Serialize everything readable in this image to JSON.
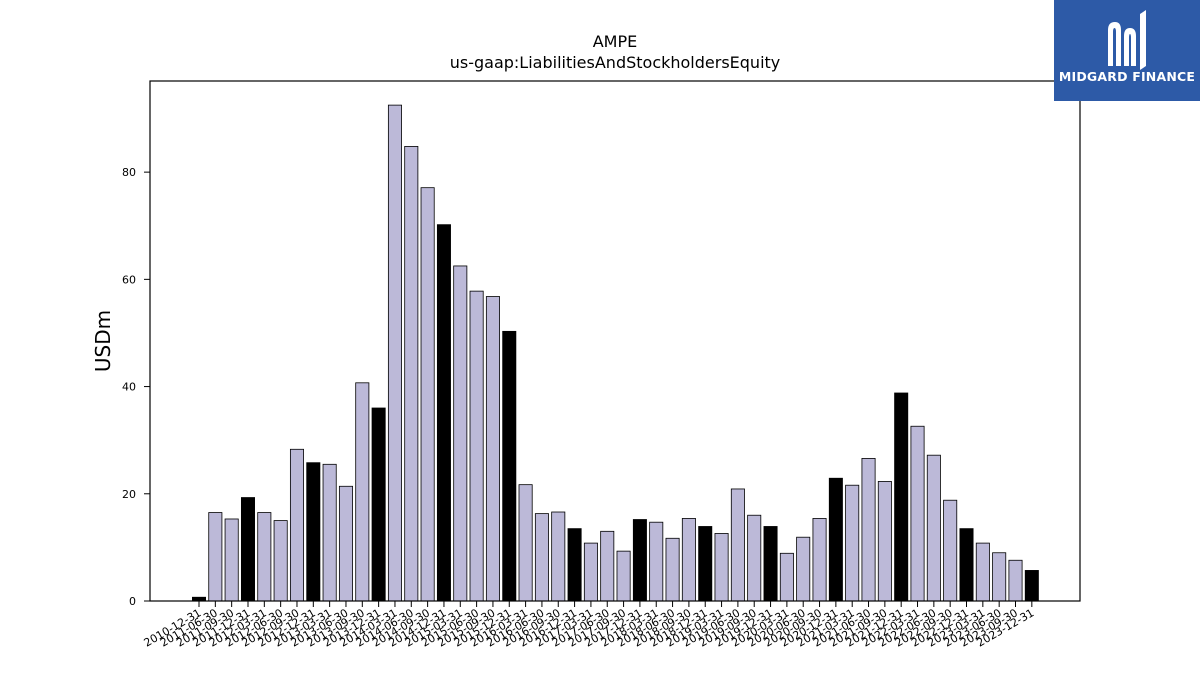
{
  "title_line1": "AMPE",
  "title_line2": "us-gaap:LiabilitiesAndStockholdersEquity",
  "logo": {
    "text": "MIDGARD FINANCE",
    "background": "#2d5aa7",
    "icon": "midgard-m-logo-icon"
  },
  "colors": {
    "bar_default": "#bcb9d8",
    "bar_year_end": "#000000",
    "bar_edge": "#000000"
  },
  "chart_data": {
    "type": "bar",
    "title": "AMPE\nus-gaap:LiabilitiesAndStockholdersEquity",
    "xlabel": "",
    "ylabel": "USDm",
    "ylim": [
      0,
      97
    ],
    "yticks": [
      0,
      20,
      40,
      60,
      80
    ],
    "grid": false,
    "legend": "none",
    "note": "",
    "categories": [
      "2010-12-31",
      "2011-06-30",
      "2011-09-30",
      "2011-12-31",
      "2012-03-31",
      "2012-06-30",
      "2012-09-30",
      "2012-12-31",
      "2013-03-31",
      "2013-06-30",
      "2013-09-30",
      "2013-12-31",
      "2014-03-31",
      "2014-06-30",
      "2014-09-30",
      "2014-12-31",
      "2015-03-31",
      "2015-06-30",
      "2015-09-30",
      "2015-12-31",
      "2016-03-31",
      "2016-06-30",
      "2016-09-30",
      "2016-12-31",
      "2017-03-31",
      "2017-06-30",
      "2017-09-30",
      "2017-12-31",
      "2018-03-31",
      "2018-06-30",
      "2018-09-30",
      "2018-12-31",
      "2019-03-31",
      "2019-06-30",
      "2019-09-30",
      "2019-12-31",
      "2020-03-31",
      "2020-06-30",
      "2020-09-30",
      "2020-12-31",
      "2021-03-31",
      "2021-06-30",
      "2021-09-30",
      "2021-12-31",
      "2022-03-31",
      "2022-06-30",
      "2022-09-30",
      "2022-12-31",
      "2023-03-31",
      "2023-06-30",
      "2023-09-30",
      "2023-12-31"
    ],
    "values": [
      0.7,
      16.5,
      15.3,
      19.3,
      16.5,
      15.0,
      28.3,
      25.8,
      25.5,
      21.4,
      40.7,
      36.0,
      92.5,
      84.8,
      77.1,
      70.2,
      62.5,
      57.8,
      56.8,
      50.3,
      21.7,
      16.3,
      16.6,
      13.5,
      10.8,
      13.0,
      9.3,
      15.2,
      14.7,
      11.7,
      15.4,
      13.9,
      12.6,
      20.9,
      16.0,
      13.9,
      8.9,
      11.9,
      15.4,
      22.9,
      21.6,
      26.6,
      22.3,
      38.8,
      32.6,
      27.2,
      18.8,
      13.5,
      10.8,
      9.0,
      7.6,
      5.7
    ],
    "highlighted": [
      true,
      false,
      false,
      true,
      false,
      false,
      false,
      true,
      false,
      false,
      false,
      true,
      false,
      false,
      false,
      true,
      false,
      false,
      false,
      true,
      false,
      false,
      false,
      true,
      false,
      false,
      false,
      true,
      false,
      false,
      false,
      true,
      false,
      false,
      false,
      true,
      false,
      false,
      false,
      true,
      false,
      false,
      false,
      true,
      false,
      false,
      false,
      true,
      false,
      false,
      false,
      true
    ]
  }
}
